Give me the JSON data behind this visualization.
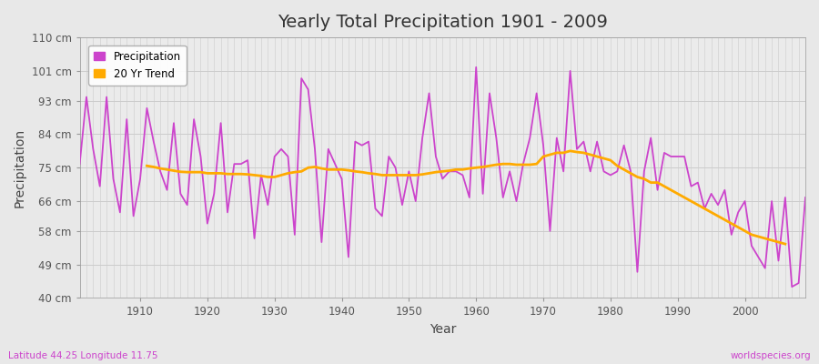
{
  "title": "Yearly Total Precipitation 1901 - 2009",
  "xlabel": "Year",
  "ylabel": "Precipitation",
  "subtitle_left": "Latitude 44.25 Longitude 11.75",
  "subtitle_right": "worldspecies.org",
  "line_color": "#cc44cc",
  "trend_color": "#ffaa00",
  "fig_bg_color": "#e8e8e8",
  "plot_bg_color": "#ebebeb",
  "ylim": [
    40,
    110
  ],
  "yticks": [
    40,
    49,
    58,
    66,
    75,
    84,
    93,
    101,
    110
  ],
  "ytick_labels": [
    "40 cm",
    "49 cm",
    "58 cm",
    "66 cm",
    "75 cm",
    "84 cm",
    "93 cm",
    "101 cm",
    "110 cm"
  ],
  "years": [
    1901,
    1902,
    1903,
    1904,
    1905,
    1906,
    1907,
    1908,
    1909,
    1910,
    1911,
    1912,
    1913,
    1914,
    1915,
    1916,
    1917,
    1918,
    1919,
    1920,
    1921,
    1922,
    1923,
    1924,
    1925,
    1926,
    1927,
    1928,
    1929,
    1930,
    1931,
    1932,
    1933,
    1934,
    1935,
    1936,
    1937,
    1938,
    1939,
    1940,
    1941,
    1942,
    1943,
    1944,
    1945,
    1946,
    1947,
    1948,
    1949,
    1950,
    1951,
    1952,
    1953,
    1954,
    1955,
    1956,
    1957,
    1958,
    1959,
    1960,
    1961,
    1962,
    1963,
    1964,
    1965,
    1966,
    1967,
    1968,
    1969,
    1970,
    1971,
    1972,
    1973,
    1974,
    1975,
    1976,
    1977,
    1978,
    1979,
    1980,
    1981,
    1982,
    1983,
    1984,
    1985,
    1986,
    1987,
    1988,
    1989,
    1990,
    1991,
    1992,
    1993,
    1994,
    1995,
    1996,
    1997,
    1998,
    1999,
    2000,
    2001,
    2002,
    2003,
    2004,
    2005,
    2006,
    2007,
    2008,
    2009
  ],
  "precipitation": [
    76,
    94,
    80,
    70,
    94,
    72,
    63,
    88,
    62,
    72,
    91,
    82,
    74,
    69,
    87,
    68,
    65,
    88,
    78,
    60,
    68,
    87,
    63,
    76,
    76,
    77,
    56,
    73,
    65,
    78,
    80,
    78,
    57,
    99,
    96,
    80,
    55,
    80,
    76,
    72,
    51,
    82,
    81,
    82,
    64,
    62,
    78,
    75,
    65,
    74,
    66,
    83,
    95,
    78,
    72,
    74,
    74,
    73,
    67,
    102,
    68,
    95,
    83,
    67,
    74,
    66,
    76,
    83,
    95,
    81,
    58,
    83,
    74,
    101,
    80,
    82,
    74,
    82,
    74,
    73,
    74,
    81,
    74,
    47,
    74,
    83,
    69,
    79,
    78,
    78,
    78,
    70,
    71,
    64,
    68,
    65,
    69,
    57,
    63,
    66,
    54,
    51,
    48,
    66,
    50,
    67,
    43,
    44,
    67
  ],
  "trend": [
    null,
    null,
    null,
    null,
    null,
    null,
    null,
    null,
    null,
    null,
    75.5,
    75.2,
    74.8,
    74.5,
    74.2,
    73.9,
    73.8,
    73.8,
    73.8,
    73.5,
    73.5,
    73.5,
    73.3,
    73.3,
    73.3,
    73.2,
    73.0,
    72.8,
    72.5,
    72.5,
    73.0,
    73.5,
    73.8,
    74.0,
    75.0,
    75.2,
    74.8,
    74.5,
    74.5,
    74.5,
    74.3,
    74.0,
    73.8,
    73.5,
    73.3,
    73.0,
    73.0,
    73.0,
    73.0,
    73.0,
    73.0,
    73.2,
    73.5,
    73.8,
    74.0,
    74.2,
    74.5,
    74.5,
    74.8,
    75.0,
    75.2,
    75.5,
    75.8,
    76.0,
    76.0,
    75.8,
    75.8,
    75.8,
    76.0,
    78.0,
    78.5,
    79.0,
    79.0,
    79.5,
    79.2,
    79.0,
    78.5,
    78.0,
    77.5,
    77.0,
    75.5,
    74.5,
    73.5,
    72.5,
    72.0,
    71.0,
    71.0,
    70.0,
    69.0,
    68.0,
    67.0,
    66.0,
    65.0,
    64.0,
    63.0,
    62.0,
    61.0,
    60.0,
    59.0,
    58.0,
    57.0,
    56.5,
    56.0,
    55.5,
    55.0,
    54.5,
    null,
    null,
    null
  ]
}
